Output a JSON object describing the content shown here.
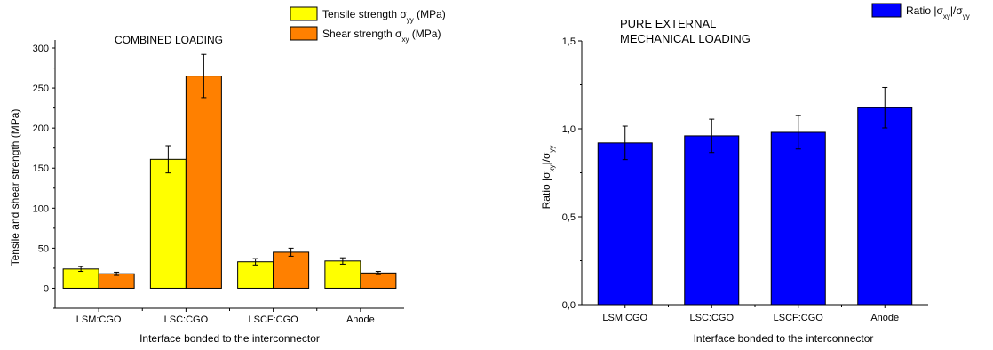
{
  "chart_data": [
    {
      "type": "bar",
      "title": "COMBINED LOADING",
      "xlabel": "Interface bonded to the interconnector",
      "ylabel": "Tensile and shear strength (MPa)",
      "categories": [
        "LSM:CGO",
        "LSC:CGO",
        "LSCF:CGO",
        "Anode"
      ],
      "ylim": [
        -25,
        310
      ],
      "yticks": [
        0,
        50,
        100,
        150,
        200,
        250,
        300
      ],
      "ytick_labels": [
        "0",
        "50",
        "100",
        "150",
        "200",
        "250",
        "300"
      ],
      "legend_position": "top-right",
      "series": [
        {
          "legend_base": "Tensile strength σ",
          "legend_sub": "yy",
          "legend_tail": " (MPa)",
          "color": "#FFFF00",
          "values": [
            24,
            161,
            33,
            34
          ],
          "errors": [
            3,
            17,
            4,
            4
          ]
        },
        {
          "legend_base": "Shear strength σ",
          "legend_sub": "xy",
          "legend_tail": " (MPa)",
          "color": "#FF8000",
          "values": [
            18,
            265,
            45,
            19
          ],
          "errors": [
            2,
            27,
            5,
            2
          ]
        }
      ]
    },
    {
      "type": "bar",
      "title_lines": [
        "PURE EXTERNAL",
        "MECHANICAL LOADING"
      ],
      "xlabel": "Interface bonded to the interconnector",
      "ylabel_parts": [
        "Ratio |σ",
        "xy",
        "|/σ",
        "yy"
      ],
      "categories": [
        "LSM:CGO",
        "LSC:CGO",
        "LSCF:CGO",
        "Anode"
      ],
      "ylim": [
        0,
        1.5
      ],
      "yticks": [
        0,
        0.5,
        1,
        1.5
      ],
      "ytick_labels": [
        "0,0",
        "0,5",
        "1,0",
        "1,5"
      ],
      "legend_position": "top-right",
      "series": [
        {
          "legend_parts": [
            "Ratio |σ",
            "xy",
            "|/σ",
            "yy"
          ],
          "color": "#0000FF",
          "values": [
            0.92,
            0.96,
            0.98,
            1.12
          ],
          "errors": [
            0.095,
            0.095,
            0.095,
            0.115
          ]
        }
      ]
    }
  ]
}
